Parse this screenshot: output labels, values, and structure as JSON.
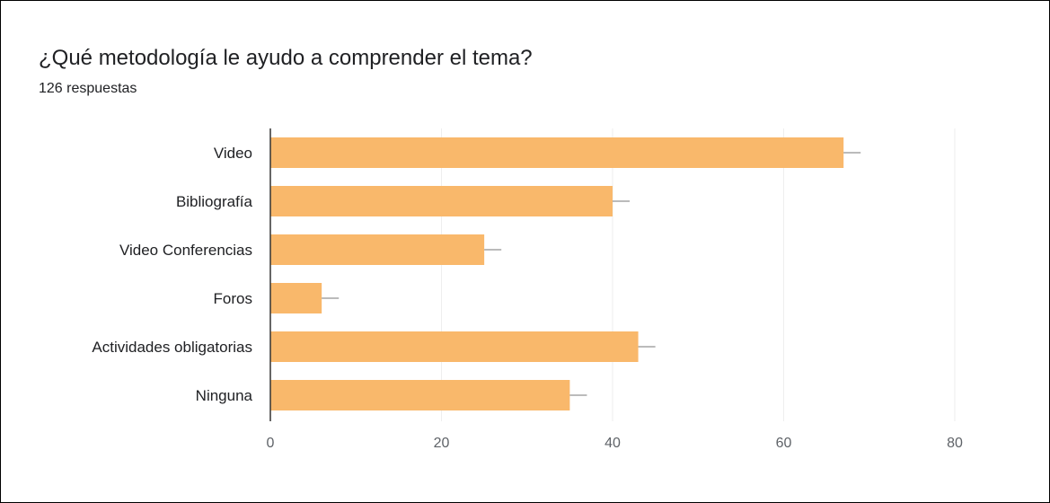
{
  "header": {
    "title": "¿Qué metodología le ayudo a comprender el tema?",
    "responses": "126 respuestas"
  },
  "colors": {
    "bar": "#F9B86B",
    "grid": "#EEEEEE",
    "axis": "#333333",
    "error_bar": "#777777"
  },
  "chart_data": {
    "type": "bar",
    "orientation": "horizontal",
    "title": "¿Qué metodología le ayudo a comprender el tema?",
    "categories": [
      "Video",
      "Bibliografía",
      "Video Conferencias",
      "Foros",
      "Actividades obligatorias",
      "Ninguna"
    ],
    "values": [
      67,
      40,
      25,
      6,
      43,
      35
    ],
    "error_bars": [
      2,
      2,
      2,
      2,
      2,
      2
    ],
    "xlim": [
      0,
      80
    ],
    "xticks": [
      "0",
      "20",
      "40",
      "60",
      "80"
    ],
    "xtick_values": [
      0,
      20,
      40,
      60,
      80
    ],
    "xlabel": "",
    "ylabel": "",
    "grid": true,
    "legend": "none"
  }
}
